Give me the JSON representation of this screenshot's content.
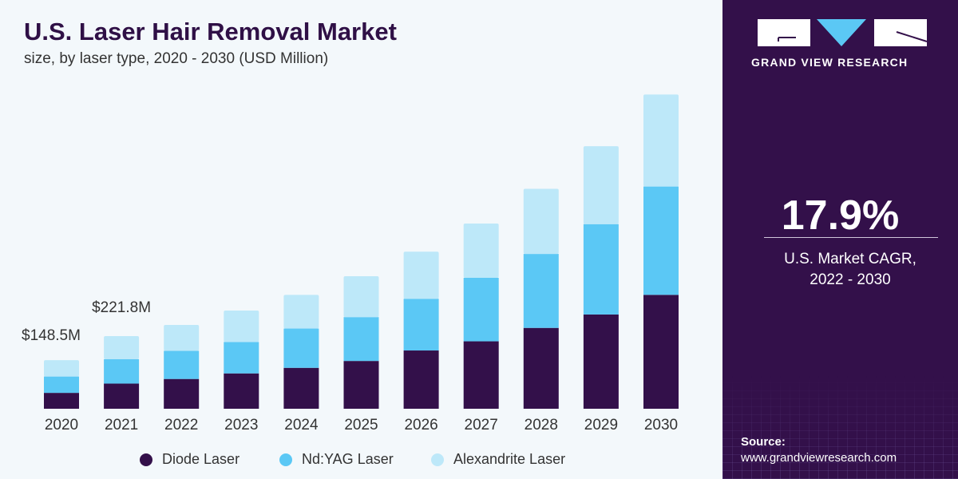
{
  "chart_data": {
    "type": "bar",
    "stacked": true,
    "title": "U.S. Laser Hair Removal Market",
    "subtitle": "size, by laser type, 2020 - 2030 (USD Million)",
    "categories": [
      "2020",
      "2021",
      "2022",
      "2023",
      "2024",
      "2025",
      "2026",
      "2027",
      "2028",
      "2029",
      "2030"
    ],
    "series": [
      {
        "name": "Diode Laser",
        "color": "#33104a",
        "values": [
          48.5,
          76.8,
          91,
          108,
          125,
          146,
          178,
          206,
          247,
          288,
          348
        ]
      },
      {
        "name": "Nd:YAG Laser",
        "color": "#5bc8f5",
        "values": [
          50,
          74.5,
          86,
          96,
          120,
          134,
          158,
          194,
          226,
          276,
          331
        ]
      },
      {
        "name": "Alexandrite Laser",
        "color": "#bde8f9",
        "values": [
          50,
          70.5,
          79,
          96,
          103,
          125,
          144,
          166,
          199,
          238,
          281
        ]
      }
    ],
    "annotations": [
      {
        "category": "2020",
        "label": "$148.5M"
      },
      {
        "category": "2021",
        "label": "$221.8M"
      }
    ],
    "ylim": [
      0,
      1000
    ],
    "grid": false,
    "legend": "bottom"
  },
  "panel": {
    "brand": "GRAND VIEW RESEARCH",
    "cagr_value": "17.9%",
    "cagr_label_1": "U.S. Market CAGR,",
    "cagr_label_2": "2022 - 2030",
    "source_label": "Source:",
    "source_url": "www.grandviewresearch.com"
  }
}
